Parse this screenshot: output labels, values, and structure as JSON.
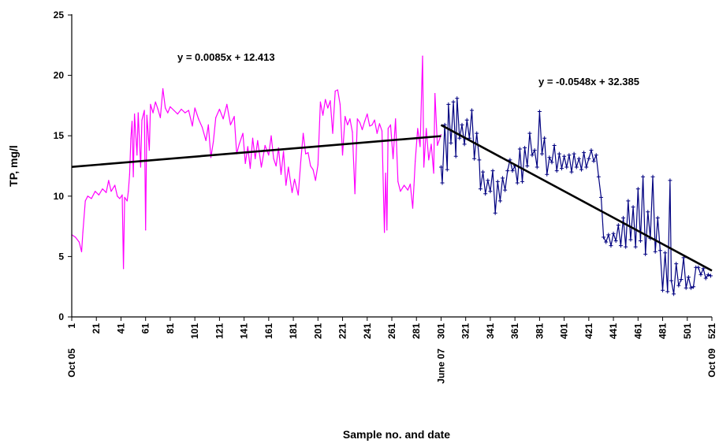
{
  "chart_data": {
    "type": "line",
    "title": "",
    "xlabel": "Sample no. and date",
    "ylabel": "TP, mg/l",
    "xlim": [
      1,
      521
    ],
    "ylim": [
      0,
      25
    ],
    "y_ticks": [
      0,
      5,
      10,
      15,
      20,
      25
    ],
    "x_ticks": [
      1,
      21,
      41,
      61,
      81,
      101,
      121,
      141,
      161,
      181,
      201,
      221,
      241,
      261,
      281,
      301,
      321,
      341,
      361,
      381,
      401,
      421,
      441,
      461,
      481,
      501,
      521
    ],
    "date_labels": [
      {
        "x": 1,
        "label": "Oct 05"
      },
      {
        "x": 301,
        "label": "June 07"
      },
      {
        "x": 521,
        "label": "Oct 09"
      }
    ],
    "grid": false,
    "legend": "none",
    "series": [
      {
        "color": "#ff00ff",
        "marker": "none",
        "x_range": [
          1,
          301
        ],
        "points": [
          [
            1,
            6.8
          ],
          [
            4,
            6.6
          ],
          [
            7,
            6.2
          ],
          [
            9,
            5.4
          ],
          [
            10,
            7.0
          ],
          [
            12,
            9.6
          ],
          [
            14,
            10.0
          ],
          [
            17,
            9.8
          ],
          [
            20,
            10.4
          ],
          [
            23,
            10.1
          ],
          [
            26,
            10.6
          ],
          [
            29,
            10.3
          ],
          [
            31,
            11.3
          ],
          [
            33,
            10.4
          ],
          [
            36,
            10.9
          ],
          [
            38,
            10.0
          ],
          [
            40,
            9.8
          ],
          [
            42,
            10.1
          ],
          [
            43,
            4.0
          ],
          [
            44,
            9.9
          ],
          [
            46,
            9.6
          ],
          [
            47,
            10.4
          ],
          [
            48,
            11.8
          ],
          [
            49,
            14.8
          ],
          [
            50,
            16.2
          ],
          [
            51,
            11.6
          ],
          [
            52,
            16.8
          ],
          [
            54,
            13.4
          ],
          [
            55,
            16.9
          ],
          [
            57,
            12.4
          ],
          [
            58,
            16.3
          ],
          [
            60,
            17.1
          ],
          [
            61,
            7.2
          ],
          [
            62,
            16.7
          ],
          [
            64,
            13.8
          ],
          [
            65,
            17.6
          ],
          [
            67,
            16.9
          ],
          [
            69,
            17.8
          ],
          [
            71,
            17.2
          ],
          [
            73,
            16.5
          ],
          [
            75,
            18.9
          ],
          [
            77,
            17.3
          ],
          [
            79,
            16.9
          ],
          [
            81,
            17.4
          ],
          [
            84,
            17.1
          ],
          [
            87,
            16.8
          ],
          [
            90,
            17.2
          ],
          [
            93,
            16.9
          ],
          [
            96,
            17.1
          ],
          [
            99,
            15.8
          ],
          [
            101,
            17.3
          ],
          [
            104,
            16.4
          ],
          [
            107,
            15.7
          ],
          [
            110,
            14.6
          ],
          [
            112,
            15.9
          ],
          [
            114,
            13.2
          ],
          [
            116,
            14.5
          ],
          [
            118,
            16.5
          ],
          [
            121,
            17.2
          ],
          [
            124,
            16.4
          ],
          [
            127,
            17.6
          ],
          [
            130,
            15.9
          ],
          [
            133,
            16.6
          ],
          [
            135,
            13.5
          ],
          [
            137,
            14.3
          ],
          [
            140,
            15.2
          ],
          [
            142,
            12.7
          ],
          [
            144,
            14.1
          ],
          [
            146,
            12.3
          ],
          [
            148,
            14.8
          ],
          [
            150,
            13.1
          ],
          [
            152,
            14.6
          ],
          [
            155,
            12.4
          ],
          [
            158,
            14.2
          ],
          [
            161,
            13.4
          ],
          [
            163,
            15.0
          ],
          [
            165,
            13.1
          ],
          [
            167,
            12.5
          ],
          [
            169,
            14.0
          ],
          [
            171,
            11.8
          ],
          [
            173,
            13.7
          ],
          [
            175,
            10.9
          ],
          [
            177,
            12.4
          ],
          [
            180,
            10.3
          ],
          [
            182,
            11.4
          ],
          [
            185,
            10.1
          ],
          [
            187,
            12.8
          ],
          [
            189,
            15.2
          ],
          [
            191,
            13.5
          ],
          [
            193,
            13.6
          ],
          [
            195,
            12.5
          ],
          [
            197,
            12.2
          ],
          [
            199,
            11.3
          ],
          [
            201,
            12.6
          ],
          [
            203,
            17.8
          ],
          [
            205,
            16.7
          ],
          [
            207,
            18.0
          ],
          [
            209,
            17.3
          ],
          [
            211,
            17.9
          ],
          [
            213,
            15.2
          ],
          [
            215,
            18.7
          ],
          [
            217,
            18.8
          ],
          [
            219,
            17.6
          ],
          [
            221,
            13.4
          ],
          [
            223,
            16.6
          ],
          [
            225,
            15.9
          ],
          [
            227,
            16.4
          ],
          [
            229,
            15.3
          ],
          [
            231,
            10.2
          ],
          [
            233,
            16.4
          ],
          [
            235,
            16.1
          ],
          [
            237,
            15.5
          ],
          [
            239,
            16.2
          ],
          [
            241,
            16.8
          ],
          [
            243,
            15.8
          ],
          [
            245,
            15.9
          ],
          [
            247,
            16.3
          ],
          [
            249,
            15.2
          ],
          [
            251,
            16.0
          ],
          [
            253,
            15.4
          ],
          [
            255,
            7.0
          ],
          [
            256,
            11.9
          ],
          [
            257,
            7.2
          ],
          [
            258,
            15.6
          ],
          [
            260,
            15.9
          ],
          [
            262,
            13.1
          ],
          [
            264,
            16.4
          ],
          [
            266,
            11.2
          ],
          [
            268,
            10.4
          ],
          [
            271,
            10.9
          ],
          [
            274,
            10.5
          ],
          [
            276,
            11.0
          ],
          [
            278,
            9.0
          ],
          [
            279,
            10.9
          ],
          [
            280,
            12.9
          ],
          [
            282,
            15.6
          ],
          [
            284,
            14.1
          ],
          [
            286,
            21.6
          ],
          [
            287,
            12.4
          ],
          [
            289,
            15.6
          ],
          [
            291,
            13.0
          ],
          [
            293,
            14.3
          ],
          [
            295,
            11.9
          ],
          [
            296,
            18.5
          ],
          [
            298,
            14.2
          ],
          [
            301,
            15.1
          ]
        ]
      },
      {
        "color": "#000080",
        "marker": "plus",
        "x_range": [
          301,
          521
        ],
        "points": [
          [
            301,
            12.4
          ],
          [
            302,
            11.1
          ],
          [
            304,
            15.9
          ],
          [
            306,
            12.2
          ],
          [
            307,
            17.6
          ],
          [
            309,
            14.4
          ],
          [
            311,
            17.8
          ],
          [
            313,
            13.3
          ],
          [
            314,
            18.1
          ],
          [
            316,
            14.8
          ],
          [
            318,
            15.9
          ],
          [
            320,
            14.3
          ],
          [
            322,
            16.3
          ],
          [
            324,
            14.8
          ],
          [
            326,
            17.1
          ],
          [
            328,
            13.1
          ],
          [
            330,
            15.2
          ],
          [
            332,
            13.0
          ],
          [
            333,
            10.6
          ],
          [
            335,
            12.0
          ],
          [
            337,
            10.2
          ],
          [
            339,
            11.3
          ],
          [
            341,
            10.4
          ],
          [
            343,
            12.1
          ],
          [
            345,
            8.6
          ],
          [
            347,
            11.2
          ],
          [
            349,
            9.6
          ],
          [
            351,
            11.5
          ],
          [
            353,
            10.5
          ],
          [
            355,
            12.1
          ],
          [
            357,
            13.0
          ],
          [
            359,
            12.1
          ],
          [
            361,
            12.5
          ],
          [
            363,
            11.1
          ],
          [
            365,
            13.9
          ],
          [
            367,
            11.2
          ],
          [
            369,
            14.0
          ],
          [
            371,
            12.5
          ],
          [
            373,
            15.2
          ],
          [
            375,
            13.4
          ],
          [
            377,
            13.8
          ],
          [
            379,
            12.4
          ],
          [
            381,
            17.0
          ],
          [
            383,
            13.5
          ],
          [
            385,
            14.8
          ],
          [
            387,
            11.8
          ],
          [
            389,
            13.2
          ],
          [
            391,
            12.8
          ],
          [
            393,
            14.2
          ],
          [
            395,
            12.1
          ],
          [
            397,
            13.5
          ],
          [
            399,
            12.3
          ],
          [
            401,
            13.3
          ],
          [
            403,
            12.4
          ],
          [
            405,
            13.4
          ],
          [
            407,
            12.0
          ],
          [
            409,
            13.5
          ],
          [
            411,
            12.4
          ],
          [
            413,
            13.1
          ],
          [
            415,
            12.2
          ],
          [
            417,
            13.6
          ],
          [
            419,
            12.4
          ],
          [
            421,
            13.1
          ],
          [
            423,
            13.8
          ],
          [
            425,
            12.9
          ],
          [
            427,
            13.4
          ],
          [
            429,
            11.6
          ],
          [
            431,
            9.9
          ],
          [
            433,
            6.6
          ],
          [
            435,
            6.2
          ],
          [
            437,
            6.8
          ],
          [
            439,
            5.9
          ],
          [
            441,
            6.9
          ],
          [
            443,
            6.3
          ],
          [
            445,
            7.6
          ],
          [
            447,
            5.9
          ],
          [
            449,
            8.2
          ],
          [
            451,
            5.8
          ],
          [
            453,
            9.6
          ],
          [
            455,
            6.4
          ],
          [
            457,
            9.1
          ],
          [
            459,
            5.8
          ],
          [
            461,
            10.6
          ],
          [
            463,
            6.3
          ],
          [
            465,
            11.6
          ],
          [
            467,
            5.2
          ],
          [
            469,
            8.7
          ],
          [
            471,
            6.5
          ],
          [
            473,
            11.6
          ],
          [
            475,
            5.4
          ],
          [
            477,
            8.2
          ],
          [
            479,
            5.5
          ],
          [
            481,
            2.2
          ],
          [
            483,
            5.3
          ],
          [
            485,
            2.1
          ],
          [
            487,
            11.3
          ],
          [
            488,
            3.0
          ],
          [
            490,
            1.9
          ],
          [
            492,
            4.4
          ],
          [
            494,
            2.6
          ],
          [
            496,
            3.1
          ],
          [
            498,
            4.9
          ],
          [
            500,
            2.4
          ],
          [
            502,
            3.3
          ],
          [
            504,
            2.4
          ],
          [
            506,
            2.5
          ],
          [
            508,
            4.1
          ],
          [
            510,
            4.1
          ],
          [
            512,
            3.5
          ],
          [
            514,
            4.0
          ],
          [
            516,
            3.2
          ],
          [
            518,
            3.5
          ],
          [
            520,
            3.4
          ]
        ]
      }
    ],
    "trendlines": [
      {
        "equation": "y = 0.0085x + 12.413",
        "slope": 0.0085,
        "intercept": 12.413,
        "x_range": [
          1,
          301
        ],
        "color": "#000000"
      },
      {
        "equation": "y =  -0.0548x + 32.385",
        "slope": -0.0548,
        "intercept": 32.385,
        "x_range": [
          301,
          521
        ],
        "color": "#000000"
      }
    ]
  }
}
